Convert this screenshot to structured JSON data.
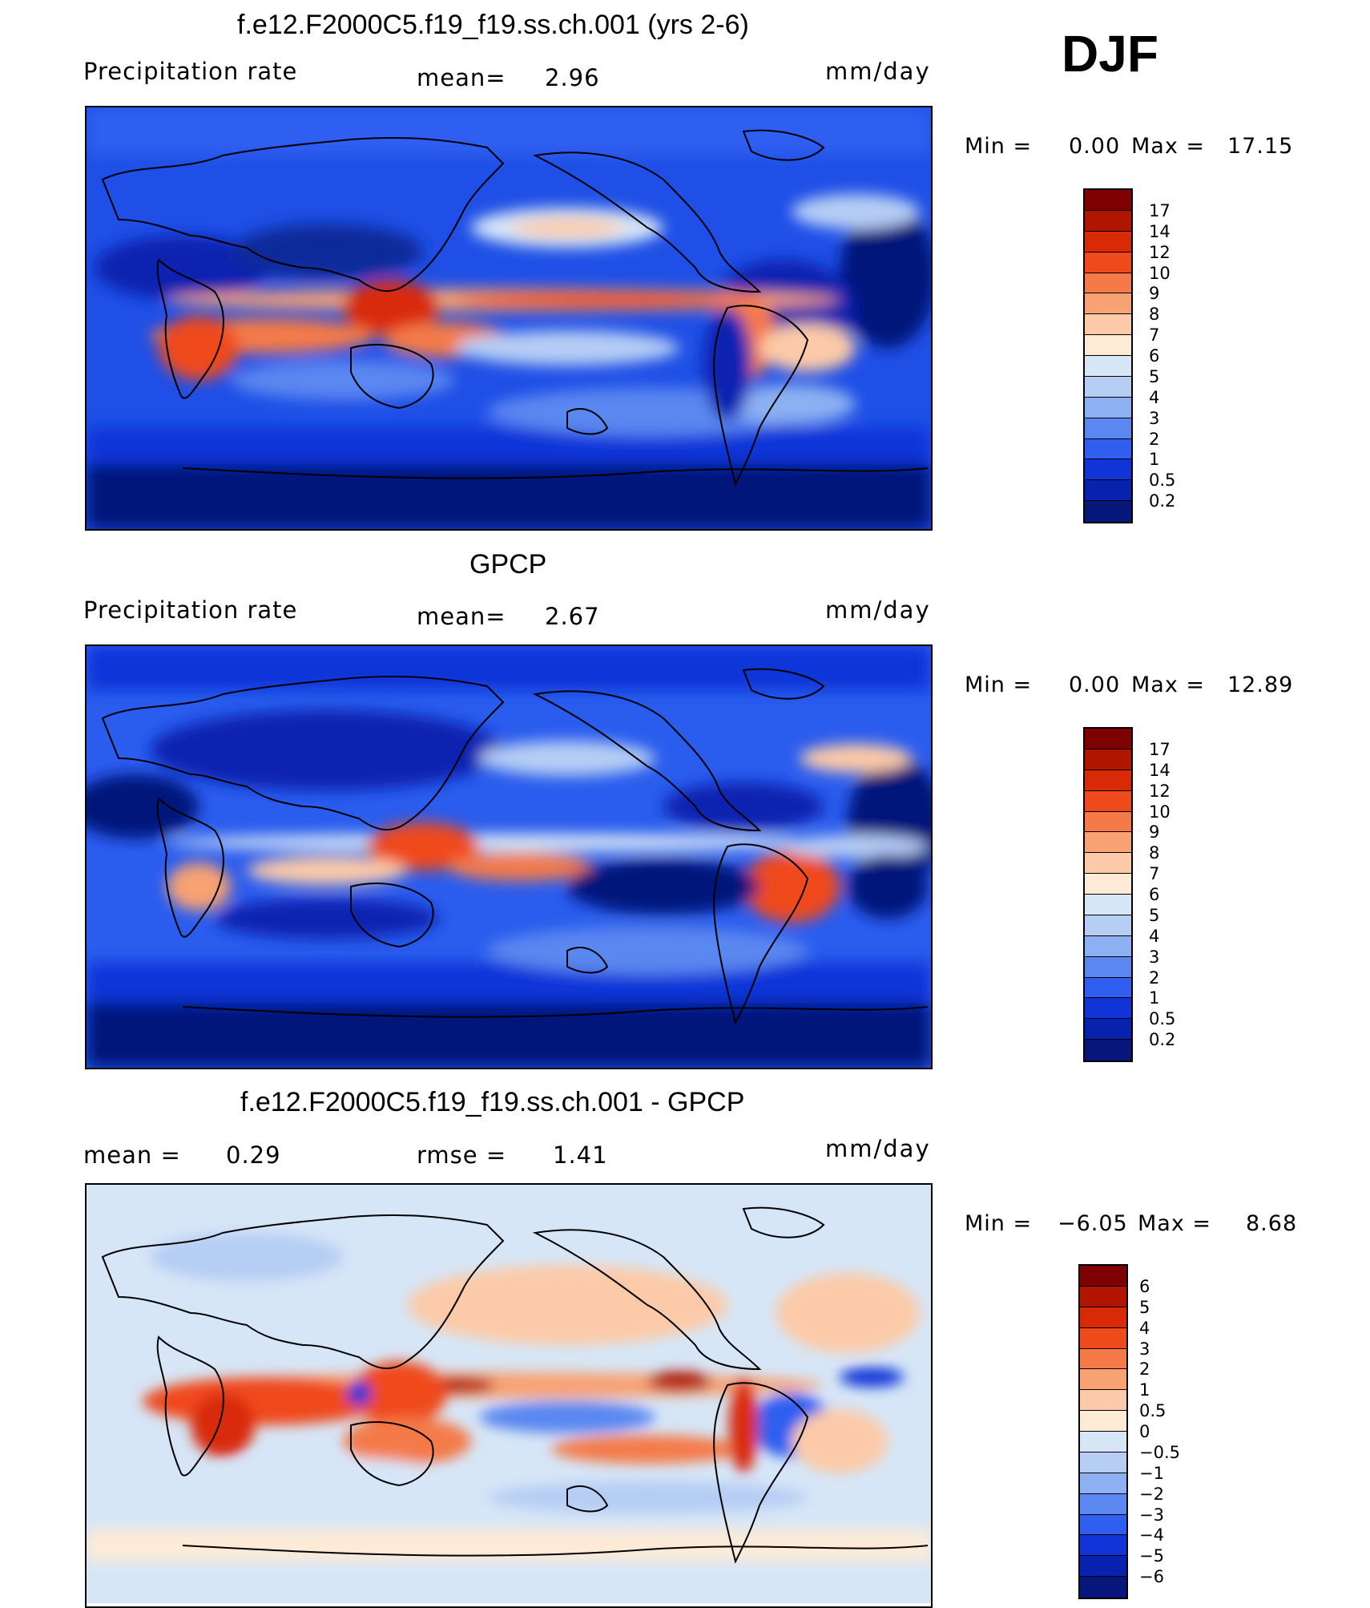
{
  "season": "DJF",
  "panels": [
    {
      "title": "f.e12.F2000C5.f19_f19.ss.ch.001 (yrs 2-6)",
      "left_label": "Precipitation  rate",
      "mid_label": "mean=",
      "mid_value": "2.96",
      "units": "mm/day",
      "min_label": "Min =",
      "min_value": "0.00",
      "max_label": "Max =",
      "max_value": "17.15",
      "map_name": "model-precipitation-map",
      "colorbar": {
        "labels": [
          "17",
          "14",
          "12",
          "10",
          "9",
          "8",
          "7",
          "6",
          "5",
          "4",
          "3",
          "2",
          "1",
          "0.5",
          "0.2"
        ],
        "colors": [
          "#7f0000",
          "#b01500",
          "#d92a08",
          "#ef4a1c",
          "#f47a48",
          "#f8a172",
          "#fccaa8",
          "#fdebd6",
          "#d6e6f7",
          "#b6cdf4",
          "#8cb0f2",
          "#5a87f0",
          "#2f5ef0",
          "#1034d8",
          "#0822b0",
          "#06167a"
        ]
      }
    },
    {
      "title": "GPCP",
      "left_label": "Precipitation  rate",
      "mid_label": "mean=",
      "mid_value": "2.67",
      "units": "mm/day",
      "min_label": "Min =",
      "min_value": "0.00",
      "max_label": "Max =",
      "max_value": "12.89",
      "map_name": "gpcp-precipitation-map",
      "colorbar": {
        "labels": [
          "17",
          "14",
          "12",
          "10",
          "9",
          "8",
          "7",
          "6",
          "5",
          "4",
          "3",
          "2",
          "1",
          "0.5",
          "0.2"
        ],
        "colors": [
          "#7f0000",
          "#b01500",
          "#d92a08",
          "#ef4a1c",
          "#f47a48",
          "#f8a172",
          "#fccaa8",
          "#fdebd6",
          "#d6e6f7",
          "#b6cdf4",
          "#8cb0f2",
          "#5a87f0",
          "#2f5ef0",
          "#1034d8",
          "#0822b0",
          "#06167a"
        ]
      }
    },
    {
      "title": "f.e12.F2000C5.f19_f19.ss.ch.001 - GPCP",
      "left_label": "mean =",
      "left_value": "0.29",
      "mid_label": "rmse =",
      "mid_value": "1.41",
      "units": "mm/day",
      "min_label": "Min =",
      "min_value": "−6.05",
      "max_label": "Max =",
      "max_value": "8.68",
      "map_name": "difference-map",
      "colorbar": {
        "labels": [
          "6",
          "5",
          "4",
          "3",
          "2",
          "1",
          "0.5",
          "0",
          "−0.5",
          "−1",
          "−2",
          "−3",
          "−4",
          "−5",
          "−6"
        ],
        "colors": [
          "#7f0000",
          "#b01500",
          "#d92a08",
          "#ef4a1c",
          "#f47a48",
          "#f8a172",
          "#fccaa8",
          "#fdebd6",
          "#d6e6f7",
          "#b6cdf4",
          "#8cb0f2",
          "#5a87f0",
          "#2f5ef0",
          "#1034d8",
          "#0822b0",
          "#06167a"
        ]
      }
    }
  ]
}
